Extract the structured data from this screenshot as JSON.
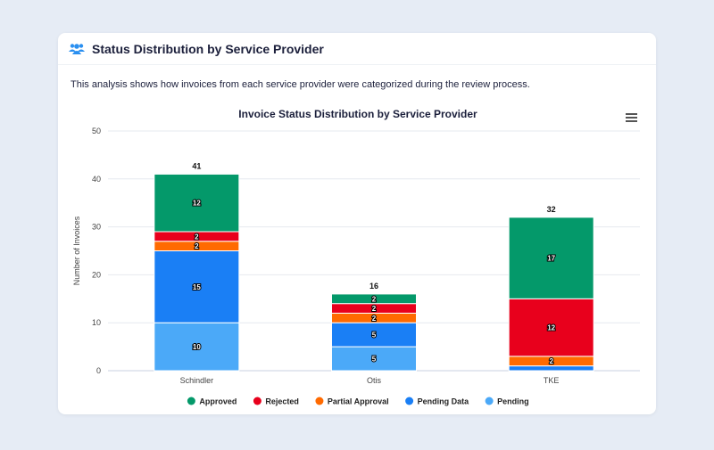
{
  "header": {
    "title": "Status Distribution by Service Provider",
    "icon": "users-icon"
  },
  "description": "This analysis shows how invoices from each service provider were categorized during the review process.",
  "chart_data": {
    "type": "bar",
    "stacked": true,
    "title": "Invoice Status Distribution by Service Provider",
    "xlabel": "",
    "ylabel": "Number of Invoices",
    "ylim": [
      0,
      50
    ],
    "yticks": [
      0,
      10,
      20,
      30,
      40,
      50
    ],
    "grid": true,
    "legend": "bottom",
    "categories": [
      "Schindler",
      "Otis",
      "TKE"
    ],
    "totals": [
      41,
      16,
      32
    ],
    "series": [
      {
        "name": "Pending",
        "color": "#4ba9f8",
        "values": [
          10,
          5,
          0
        ]
      },
      {
        "name": "Pending Data",
        "color": "#1a7ff5",
        "values": [
          15,
          5,
          1
        ]
      },
      {
        "name": "Partial Approval",
        "color": "#ff6a00",
        "values": [
          2,
          2,
          2
        ]
      },
      {
        "name": "Rejected",
        "color": "#e8001c",
        "values": [
          2,
          2,
          12
        ]
      },
      {
        "name": "Approved",
        "color": "#04996a",
        "values": [
          12,
          2,
          17
        ]
      }
    ],
    "legend_order": [
      "Approved",
      "Rejected",
      "Partial Approval",
      "Pending Data",
      "Pending"
    ]
  }
}
